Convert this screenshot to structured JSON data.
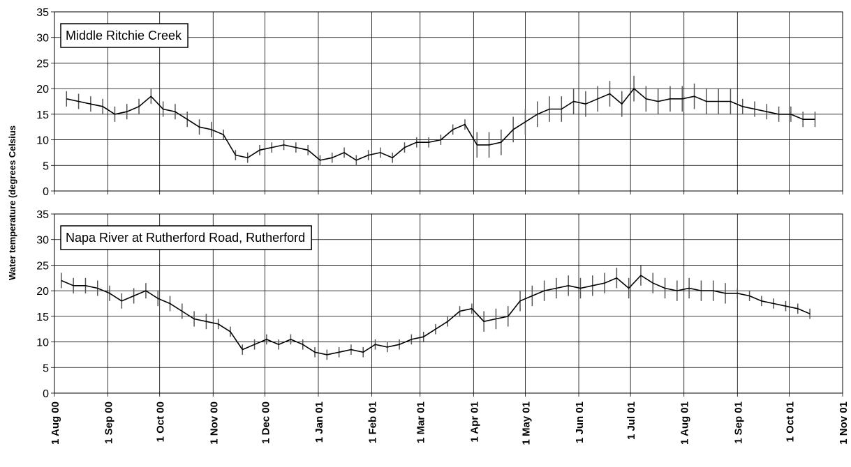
{
  "chart_data": [
    {
      "type": "line",
      "label": "Middle Ritchie Creek",
      "ylabel": "Water temperature (degrees Celsius",
      "color": "#000000",
      "range_color": "#555555",
      "grid": true,
      "xlim": [
        "2000-08-01",
        "2001-11-01"
      ],
      "xticks": [
        "2000-08-01",
        "2000-09-01",
        "2000-10-01",
        "2000-11-01",
        "2000-12-01",
        "2001-01-01",
        "2001-02-01",
        "2001-03-01",
        "2001-04-01",
        "2001-05-01",
        "2001-06-01",
        "2001-07-01",
        "2001-08-01",
        "2001-09-01",
        "2001-10-01",
        "2001-11-01"
      ],
      "ylim": [
        0,
        35
      ],
      "yticks": [
        0,
        5,
        10,
        15,
        20,
        25,
        30,
        35
      ],
      "x": [
        "2000-08-08",
        "2000-08-15",
        "2000-08-22",
        "2000-08-29",
        "2000-09-05",
        "2000-09-12",
        "2000-09-19",
        "2000-09-26",
        "2000-10-03",
        "2000-10-10",
        "2000-10-17",
        "2000-10-24",
        "2000-10-31",
        "2000-11-07",
        "2000-11-14",
        "2000-11-21",
        "2000-11-28",
        "2000-12-05",
        "2000-12-12",
        "2000-12-19",
        "2000-12-26",
        "2001-01-02",
        "2001-01-09",
        "2001-01-16",
        "2001-01-23",
        "2001-01-30",
        "2001-02-06",
        "2001-02-13",
        "2001-02-20",
        "2001-02-27",
        "2001-03-06",
        "2001-03-13",
        "2001-03-20",
        "2001-03-27",
        "2001-04-03",
        "2001-04-10",
        "2001-04-17",
        "2001-04-24",
        "2001-05-01",
        "2001-05-08",
        "2001-05-15",
        "2001-05-22",
        "2001-05-29",
        "2001-06-05",
        "2001-06-12",
        "2001-06-19",
        "2001-06-26",
        "2001-07-03",
        "2001-07-10",
        "2001-07-17",
        "2001-07-24",
        "2001-07-31",
        "2001-08-07",
        "2001-08-14",
        "2001-08-21",
        "2001-08-28",
        "2001-09-04",
        "2001-09-11",
        "2001-09-18",
        "2001-09-25",
        "2001-10-02",
        "2001-10-09",
        "2001-10-16"
      ],
      "values": [
        18,
        17.5,
        17,
        16.5,
        15,
        15.5,
        16.5,
        18.5,
        16,
        15.5,
        14,
        12.5,
        12,
        11,
        7,
        6.5,
        8,
        8.5,
        9,
        8.5,
        8,
        6,
        6.5,
        7.5,
        6,
        7,
        7.5,
        6.5,
        8.5,
        9.5,
        9.5,
        10,
        12,
        13,
        9,
        9,
        9.5,
        12,
        13.5,
        15,
        16,
        16,
        17.5,
        17,
        18,
        19,
        17,
        20,
        18,
        17.5,
        18,
        18,
        18.5,
        17.5,
        17.5,
        17.5,
        16.5,
        16,
        15.5,
        15,
        15,
        14,
        14
      ],
      "min": [
        16.5,
        16,
        15.5,
        15,
        13.5,
        14,
        15,
        17,
        14.5,
        14,
        12.5,
        11,
        10.5,
        10,
        6,
        5.5,
        7,
        7.5,
        8,
        7.5,
        7,
        5,
        5.5,
        6.5,
        5,
        6,
        6.5,
        5.5,
        7.5,
        8.5,
        8.5,
        9,
        11,
        12,
        6.5,
        6.5,
        7,
        9.5,
        11,
        12.5,
        13.5,
        13.5,
        15,
        14.5,
        15.5,
        16.5,
        14.5,
        17.5,
        15.5,
        15,
        15.5,
        15.5,
        16,
        15,
        15,
        15,
        15,
        14.5,
        14,
        13.5,
        13.5,
        12.5,
        12.5
      ],
      "max": [
        19.5,
        19,
        18.5,
        18,
        16.5,
        17,
        18,
        20,
        17.5,
        17,
        15.5,
        14,
        13.5,
        12,
        8,
        7.5,
        9,
        9.5,
        10,
        9.5,
        9,
        7,
        7.5,
        8.5,
        7,
        8,
        8.5,
        7.5,
        9.5,
        10.5,
        10.5,
        11,
        13,
        14,
        11.5,
        11.5,
        12,
        14.5,
        16,
        17.5,
        18.5,
        18.5,
        20,
        19.5,
        20.5,
        21.5,
        19.5,
        22.5,
        20.5,
        20,
        20.5,
        20.5,
        21,
        20,
        20,
        20,
        18,
        17.5,
        17,
        16.5,
        16.5,
        15.5,
        15.5
      ]
    },
    {
      "type": "line",
      "label": "Napa River at Rutherford Road, Rutherford",
      "color": "#000000",
      "range_color": "#555555",
      "grid": true,
      "xlim": [
        "2000-08-01",
        "2001-11-01"
      ],
      "xticks": [
        {
          "value": "2000-08-01",
          "label": "1 Aug 00"
        },
        {
          "value": "2000-09-01",
          "label": "1 Sep 00"
        },
        {
          "value": "2000-10-01",
          "label": "1 Oct 00"
        },
        {
          "value": "2000-11-01",
          "label": "1 Nov 00"
        },
        {
          "value": "2000-12-01",
          "label": "1 Dec 00"
        },
        {
          "value": "2001-01-01",
          "label": "1 Jan 01"
        },
        {
          "value": "2001-02-01",
          "label": "1 Feb 01"
        },
        {
          "value": "2001-03-01",
          "label": "1 Mar 01"
        },
        {
          "value": "2001-04-01",
          "label": "1 Apr 01"
        },
        {
          "value": "2001-05-01",
          "label": "1 May 01"
        },
        {
          "value": "2001-06-01",
          "label": "1 Jun 01"
        },
        {
          "value": "2001-07-01",
          "label": "1 Jul 01"
        },
        {
          "value": "2001-08-01",
          "label": "1 Aug 01"
        },
        {
          "value": "2001-09-01",
          "label": "1 Sep 01"
        },
        {
          "value": "2001-10-01",
          "label": "1 Oct 01"
        },
        {
          "value": "2001-11-01",
          "label": "1 Nov 01"
        }
      ],
      "ylim": [
        0,
        35
      ],
      "yticks": [
        0,
        5,
        10,
        15,
        20,
        25,
        30,
        35
      ],
      "x": [
        "2000-08-05",
        "2000-08-12",
        "2000-08-19",
        "2000-08-26",
        "2000-09-02",
        "2000-09-09",
        "2000-09-16",
        "2000-09-23",
        "2000-09-30",
        "2000-10-07",
        "2000-10-14",
        "2000-10-21",
        "2000-10-28",
        "2000-11-04",
        "2000-11-11",
        "2000-11-18",
        "2000-11-25",
        "2000-12-02",
        "2000-12-09",
        "2000-12-16",
        "2000-12-23",
        "2000-12-30",
        "2001-01-06",
        "2001-01-13",
        "2001-01-20",
        "2001-01-27",
        "2001-02-03",
        "2001-02-10",
        "2001-02-17",
        "2001-02-24",
        "2001-03-03",
        "2001-03-10",
        "2001-03-17",
        "2001-03-24",
        "2001-03-31",
        "2001-04-07",
        "2001-04-14",
        "2001-04-21",
        "2001-04-28",
        "2001-05-05",
        "2001-05-12",
        "2001-05-19",
        "2001-05-26",
        "2001-06-02",
        "2001-06-09",
        "2001-06-16",
        "2001-06-23",
        "2001-06-30",
        "2001-07-07",
        "2001-07-14",
        "2001-07-21",
        "2001-07-28",
        "2001-08-04",
        "2001-08-11",
        "2001-08-18",
        "2001-08-25",
        "2001-09-01",
        "2001-09-08",
        "2001-09-15",
        "2001-09-22",
        "2001-09-29",
        "2001-10-06",
        "2001-10-13"
      ],
      "values": [
        22,
        21,
        21,
        20.5,
        19.5,
        18,
        19,
        20,
        18.5,
        17.5,
        16,
        14.5,
        14,
        13.5,
        12,
        8.5,
        9.5,
        10.5,
        9.5,
        10.5,
        9.5,
        8,
        7.5,
        8,
        8.5,
        8,
        9.5,
        9,
        9.5,
        10.5,
        11,
        12.5,
        14,
        16,
        16.5,
        14,
        14.5,
        15,
        18,
        19,
        20,
        20.5,
        21,
        20.5,
        21,
        21.5,
        22.5,
        20.5,
        23,
        21.5,
        20.5,
        20,
        20.5,
        20,
        20,
        19.5,
        19.5,
        19,
        18,
        17.5,
        17,
        16.5,
        15.5
      ],
      "min": [
        20.5,
        19.5,
        19.5,
        19,
        18,
        16.5,
        17.5,
        18.5,
        17,
        16,
        14.5,
        13,
        12.5,
        12.5,
        11,
        7.5,
        8.5,
        9.5,
        8.5,
        9.5,
        8.5,
        7,
        6.5,
        7,
        7.5,
        7,
        8.5,
        8,
        8.5,
        9.5,
        10,
        11.5,
        13,
        15,
        15.5,
        12,
        12.5,
        13,
        16,
        17,
        18,
        18.5,
        19,
        18.5,
        19,
        19.5,
        20.5,
        18.5,
        21,
        19.5,
        18.5,
        18,
        18.5,
        18,
        18,
        17.5,
        18.5,
        18,
        17,
        16.5,
        16,
        15.5,
        14.5
      ],
      "max": [
        23.5,
        22.5,
        22.5,
        22,
        21,
        19.5,
        20.5,
        21.5,
        20,
        19,
        17.5,
        16,
        15.5,
        14.5,
        13,
        9.5,
        10.5,
        11.5,
        10.5,
        11.5,
        10.5,
        9,
        8.5,
        9,
        9.5,
        9,
        10.5,
        10,
        10.5,
        11.5,
        12,
        13.5,
        15,
        17,
        17.5,
        16,
        16.5,
        17,
        20,
        21,
        22,
        22.5,
        23,
        22.5,
        23,
        23.5,
        24.5,
        22.5,
        25,
        23.5,
        22.5,
        22,
        22.5,
        22,
        22,
        21.5,
        20.5,
        20,
        19,
        18.5,
        18,
        17.5,
        16.5
      ]
    }
  ]
}
